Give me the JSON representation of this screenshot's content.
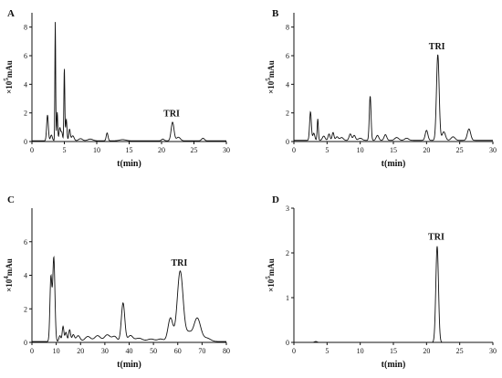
{
  "chart_data": [
    {
      "type": "line",
      "panel_label": "A",
      "xlabel": "t(min)",
      "ylabel_prefix": "×10",
      "ylabel_exp": "5",
      "ylabel_unit": "mAu",
      "xlim": [
        0,
        30
      ],
      "ylim": [
        0,
        9
      ],
      "xticks": [
        0,
        5,
        10,
        15,
        20,
        25,
        30
      ],
      "yticks": [
        0,
        2,
        4,
        6,
        8
      ],
      "grid": false,
      "baseline": 0.05,
      "peaks": [
        [
          2.4,
          1.8,
          0.13
        ],
        [
          3.0,
          0.4,
          0.15
        ],
        [
          3.6,
          8.3,
          0.06
        ],
        [
          3.9,
          2.0,
          0.08
        ],
        [
          4.3,
          0.9,
          0.12
        ],
        [
          4.6,
          0.6,
          0.12
        ],
        [
          5.0,
          5.1,
          0.07
        ],
        [
          5.3,
          1.5,
          0.1
        ],
        [
          5.8,
          0.8,
          0.12
        ],
        [
          6.3,
          0.35,
          0.2
        ],
        [
          7.5,
          0.15,
          0.3
        ],
        [
          9.0,
          0.12,
          0.4
        ],
        [
          11.6,
          0.55,
          0.14
        ],
        [
          14.0,
          0.08,
          0.5
        ],
        [
          20.2,
          0.12,
          0.2
        ],
        [
          21.7,
          1.3,
          0.22
        ],
        [
          22.6,
          0.25,
          0.3
        ],
        [
          26.4,
          0.18,
          0.22
        ]
      ],
      "annotation": {
        "text": "TRI",
        "x": 21.7,
        "y": 1.3
      }
    },
    {
      "type": "line",
      "panel_label": "B",
      "xlabel": "t(min)",
      "ylabel_prefix": "×10",
      "ylabel_exp": "5",
      "ylabel_unit": "mAu",
      "xlim": [
        0,
        30
      ],
      "ylim": [
        0,
        9
      ],
      "xticks": [
        0,
        5,
        10,
        15,
        20,
        25,
        30
      ],
      "yticks": [
        0,
        2,
        4,
        6,
        8
      ],
      "grid": false,
      "baseline": 0.08,
      "peaks": [
        [
          2.5,
          2.0,
          0.13
        ],
        [
          3.0,
          0.5,
          0.15
        ],
        [
          3.6,
          1.5,
          0.09
        ],
        [
          4.5,
          0.3,
          0.2
        ],
        [
          5.3,
          0.45,
          0.15
        ],
        [
          5.9,
          0.55,
          0.14
        ],
        [
          6.5,
          0.25,
          0.2
        ],
        [
          7.2,
          0.2,
          0.25
        ],
        [
          8.5,
          0.45,
          0.18
        ],
        [
          9.1,
          0.35,
          0.18
        ],
        [
          10.0,
          0.15,
          0.3
        ],
        [
          11.5,
          3.1,
          0.13
        ],
        [
          12.6,
          0.35,
          0.2
        ],
        [
          13.8,
          0.4,
          0.2
        ],
        [
          15.5,
          0.2,
          0.3
        ],
        [
          17.0,
          0.15,
          0.3
        ],
        [
          20.0,
          0.7,
          0.2
        ],
        [
          21.7,
          6.0,
          0.2
        ],
        [
          22.6,
          0.6,
          0.25
        ],
        [
          24.0,
          0.25,
          0.3
        ],
        [
          26.4,
          0.8,
          0.25
        ]
      ],
      "annotation": {
        "text": "TRI",
        "x": 21.7,
        "y": 6.0
      }
    },
    {
      "type": "line",
      "panel_label": "C",
      "xlabel": "t(min)",
      "ylabel_prefix": "×10",
      "ylabel_exp": "4",
      "ylabel_unit": "mAu",
      "xlim": [
        0,
        80
      ],
      "ylim": [
        0,
        8
      ],
      "xticks": [
        0,
        10,
        20,
        30,
        40,
        50,
        60,
        70,
        80
      ],
      "yticks": [
        0,
        2,
        4,
        6
      ],
      "grid": false,
      "baseline": 0.05,
      "peaks": [
        [
          7.8,
          3.8,
          0.4
        ],
        [
          9.0,
          5.0,
          0.45
        ],
        [
          11.5,
          0.35,
          0.4
        ],
        [
          12.8,
          0.9,
          0.35
        ],
        [
          14.0,
          0.55,
          0.4
        ],
        [
          15.5,
          0.7,
          0.4
        ],
        [
          17.0,
          0.4,
          0.5
        ],
        [
          19.0,
          0.35,
          0.8
        ],
        [
          23.0,
          0.3,
          1.2
        ],
        [
          27.0,
          0.35,
          1.2
        ],
        [
          31.0,
          0.4,
          1.2
        ],
        [
          34.0,
          0.3,
          1.0
        ],
        [
          37.5,
          2.3,
          0.7
        ],
        [
          40.5,
          0.35,
          1.0
        ],
        [
          44.0,
          0.2,
          1.5
        ],
        [
          49.0,
          0.15,
          1.5
        ],
        [
          53.0,
          0.15,
          1.2
        ],
        [
          57.0,
          1.4,
          1.0
        ],
        [
          61.0,
          4.2,
          1.2
        ],
        [
          64.5,
          0.5,
          1.2
        ],
        [
          68.0,
          1.4,
          1.4
        ],
        [
          72.0,
          0.2,
          1.5
        ]
      ],
      "annotation": {
        "text": "TRI",
        "x": 61.0,
        "y": 4.2
      }
    },
    {
      "type": "line",
      "panel_label": "D",
      "xlabel": "t(min)",
      "ylabel_prefix": "×10",
      "ylabel_exp": "5",
      "ylabel_unit": "mAu",
      "xlim": [
        0,
        30
      ],
      "ylim": [
        0,
        3
      ],
      "xticks": [
        0,
        5,
        10,
        15,
        20,
        25,
        30
      ],
      "yticks": [
        0,
        1,
        2,
        3
      ],
      "grid": false,
      "baseline": 0.0,
      "peaks": [
        [
          3.3,
          0.02,
          0.2
        ],
        [
          21.6,
          2.15,
          0.2
        ]
      ],
      "annotation": {
        "text": "TRI",
        "x": 21.6,
        "y": 2.15
      }
    }
  ]
}
